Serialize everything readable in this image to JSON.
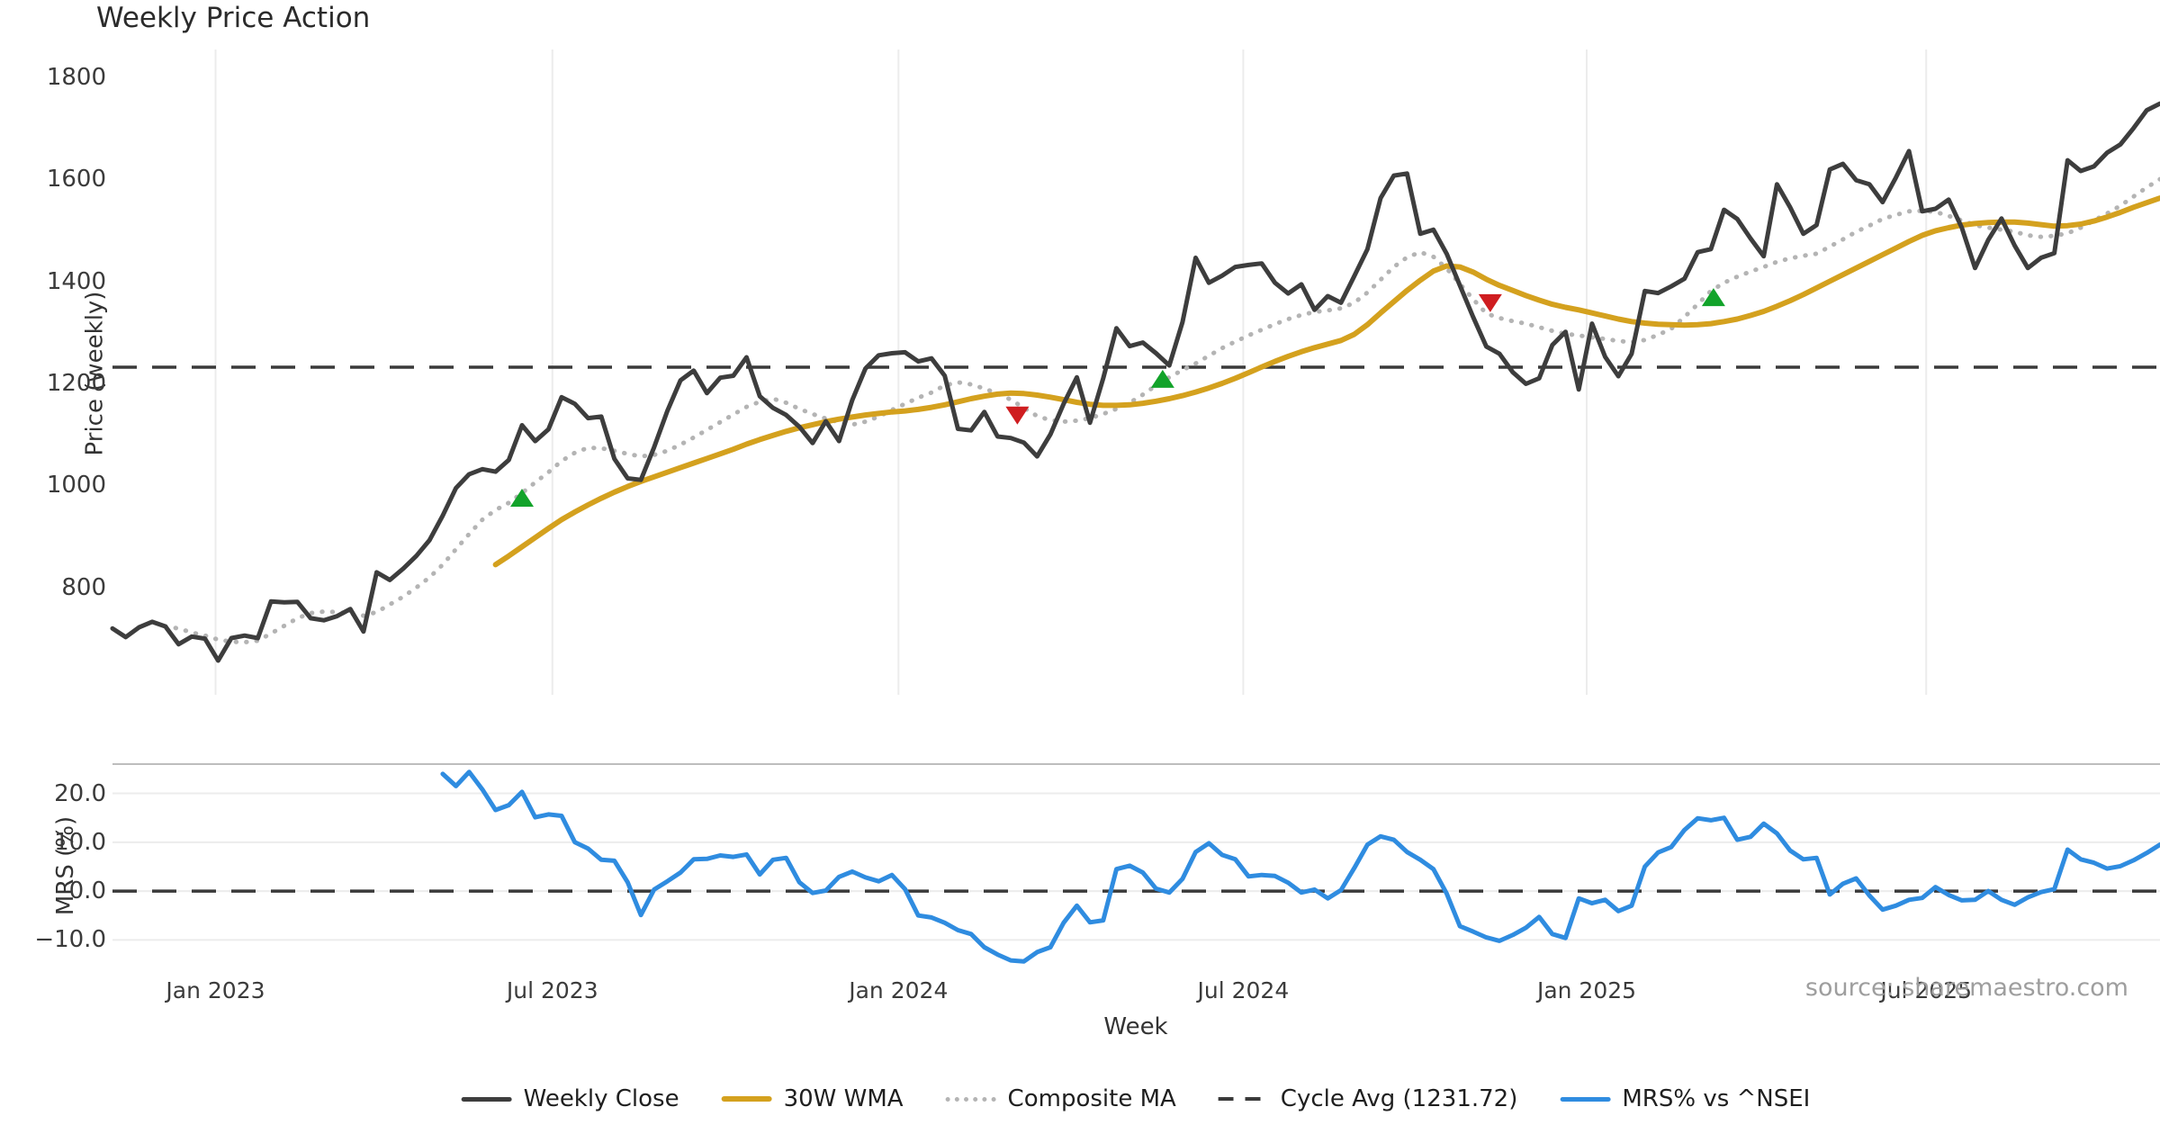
{
  "title": "Weekly Price Action",
  "source_note": "source: sharemaestro.com",
  "legend": {
    "items": [
      {
        "label": "Weekly Close",
        "swatch": "close-line-swatch"
      },
      {
        "label": "30W WMA",
        "swatch": "wma-line-swatch"
      },
      {
        "label": "Composite MA",
        "swatch": "composite-line-swatch"
      },
      {
        "label": "Cycle Avg (1231.72)",
        "swatch": "cycle-avg-swatch"
      },
      {
        "label": "MRS% vs ^NSEI",
        "swatch": "mrs-line-swatch"
      }
    ]
  },
  "colors": {
    "close": "#3d3d3d",
    "wma": "#d4a11e",
    "composite": "#b4b4b4",
    "cycle_avg": "#3a3a3a",
    "mrs": "#2f8ce0",
    "buy_marker": "#12a32a",
    "sell_marker": "#cf1d20",
    "grid": "#ececec",
    "panel_border": "#bdbdbd"
  },
  "chart_data": {
    "type": "line",
    "title": "Weekly Price Action",
    "xlabel": "Week",
    "x_is_weekly_index": true,
    "n_weeks": 156,
    "x_ticks": [
      {
        "label": "Jan 2023",
        "week": 7.8
      },
      {
        "label": "Jul 2023",
        "week": 33.3
      },
      {
        "label": "Jan 2024",
        "week": 59.5
      },
      {
        "label": "Jul 2024",
        "week": 85.6
      },
      {
        "label": "Jan 2025",
        "week": 111.6
      },
      {
        "label": "Jul 2025",
        "week": 137.3
      }
    ],
    "panels": [
      {
        "name": "price",
        "ylabel": "Price (weekly)",
        "ylim": [
          590,
          1854
        ],
        "grid": "vertical",
        "yticks": [
          {
            "label": "1800",
            "value": 1800
          },
          {
            "label": "1600",
            "value": 1600
          },
          {
            "label": "1400",
            "value": 1400
          },
          {
            "label": "1200",
            "value": 1200
          },
          {
            "label": "1000",
            "value": 1000
          },
          {
            "label": "800",
            "value": 800
          }
        ],
        "cycle_avg": 1231.72,
        "series": [
          {
            "name": "Composite MA",
            "style": "dotted",
            "color_key": "composite",
            "start_week": 4,
            "values": [
              724,
              720,
              712,
              706,
              698,
              694,
              693,
              696,
              710,
              725,
              740,
              750,
              753,
              752,
              749,
              745,
              752,
              767,
              782,
              800,
              820,
              845,
              875,
              905,
              933,
              952,
              966,
              985,
              1006,
              1026,
              1048,
              1064,
              1074,
              1073,
              1068,
              1062,
              1057,
              1060,
              1068,
              1080,
              1094,
              1109,
              1124,
              1139,
              1154,
              1164,
              1170,
              1162,
              1150,
              1140,
              1131,
              1124,
              1119,
              1125,
              1135,
              1148,
              1160,
              1172,
              1182,
              1196,
              1202,
              1198,
              1190,
              1180,
              1168,
              1152,
              1136,
              1128,
              1125,
              1127,
              1132,
              1140,
              1150,
              1162,
              1178,
              1196,
              1212,
              1226,
              1239,
              1254,
              1269,
              1282,
              1294,
              1305,
              1316,
              1326,
              1334,
              1340,
              1343,
              1347,
              1358,
              1378,
              1403,
              1428,
              1447,
              1457,
              1448,
              1425,
              1395,
              1365,
              1337,
              1328,
              1322,
              1317,
              1310,
              1303,
              1297,
              1294,
              1290,
              1287,
              1283,
              1281,
              1285,
              1295,
              1307,
              1330,
              1355,
              1381,
              1397,
              1409,
              1419,
              1428,
              1438,
              1445,
              1450,
              1454,
              1468,
              1482,
              1497,
              1509,
              1522,
              1530,
              1537,
              1538,
              1536,
              1528,
              1519,
              1510,
              1505,
              1501,
              1497,
              1490,
              1487,
              1489,
              1494,
              1505,
              1519,
              1533,
              1548,
              1566,
              1584,
              1600
            ]
          },
          {
            "name": "30W WMA",
            "style": "solid",
            "color_key": "wma",
            "width": 6,
            "start_week": 29,
            "values": [
              845,
              862,
              880,
              898,
              916,
              933,
              948,
              962,
              975,
              987,
              998,
              1008,
              1017,
              1026,
              1035,
              1044,
              1053,
              1062,
              1071,
              1081,
              1090,
              1098,
              1106,
              1113,
              1119,
              1125,
              1130,
              1134,
              1138,
              1141,
              1144,
              1146,
              1149,
              1153,
              1158,
              1164,
              1170,
              1175,
              1179,
              1181,
              1180,
              1177,
              1173,
              1168,
              1163,
              1159,
              1157,
              1157,
              1158,
              1161,
              1165,
              1170,
              1176,
              1183,
              1191,
              1200,
              1210,
              1221,
              1232,
              1243,
              1253,
              1262,
              1270,
              1277,
              1284,
              1296,
              1315,
              1338,
              1360,
              1382,
              1402,
              1420,
              1430,
              1428,
              1418,
              1404,
              1392,
              1382,
              1372,
              1363,
              1355,
              1349,
              1344,
              1338,
              1332,
              1326,
              1321,
              1318,
              1316,
              1315,
              1314,
              1315,
              1317,
              1321,
              1326,
              1333,
              1341,
              1351,
              1362,
              1374,
              1387,
              1400,
              1413,
              1426,
              1439,
              1452,
              1465,
              1478,
              1490,
              1499,
              1505,
              1510,
              1513,
              1515,
              1516,
              1516,
              1514,
              1511,
              1508,
              1509,
              1512,
              1518,
              1526,
              1535,
              1545,
              1554,
              1563
            ]
          },
          {
            "name": "Weekly Close",
            "style": "solid",
            "color_key": "close",
            "width": 5,
            "start_week": 0,
            "values": [
              720,
              703,
              722,
              733,
              724,
              689,
              704,
              700,
              657,
              701,
              706,
              701,
              773,
              771,
              772,
              740,
              736,
              744,
              758,
              714,
              830,
              815,
              837,
              862,
              893,
              941,
              995,
              1022,
              1032,
              1027,
              1050,
              1118,
              1087,
              1110,
              1173,
              1160,
              1132,
              1135,
              1052,
              1014,
              1011,
              1075,
              1146,
              1206,
              1225,
              1181,
              1211,
              1215,
              1251,
              1175,
              1152,
              1138,
              1115,
              1083,
              1126,
              1087,
              1167,
              1229,
              1255,
              1259,
              1261,
              1243,
              1249,
              1215,
              1111,
              1108,
              1144,
              1096,
              1093,
              1084,
              1057,
              1100,
              1160,
              1212,
              1123,
              1210,
              1308,
              1273,
              1280,
              1259,
              1235,
              1320,
              1446,
              1397,
              1411,
              1428,
              1432,
              1435,
              1397,
              1376,
              1394,
              1344,
              1371,
              1358,
              1410,
              1463,
              1563,
              1607,
              1611,
              1493,
              1501,
              1454,
              1392,
              1330,
              1272,
              1258,
              1222,
              1199,
              1210,
              1275,
              1301,
              1188,
              1317,
              1252,
              1214,
              1258,
              1381,
              1377,
              1390,
              1405,
              1457,
              1463,
              1540,
              1522,
              1484,
              1449,
              1590,
              1545,
              1493,
              1510,
              1619,
              1630,
              1598,
              1590,
              1555,
              1603,
              1655,
              1537,
              1542,
              1560,
              1505,
              1426,
              1481,
              1523,
              1470,
              1426,
              1446,
              1455,
              1637,
              1616,
              1625,
              1652,
              1668,
              1700,
              1735,
              1748
            ]
          }
        ],
        "markers": {
          "buy": {
            "shape": "triangle-up",
            "color_key": "buy_marker",
            "points": [
              {
                "week": 31.0,
                "price": 976
              },
              {
                "week": 79.5,
                "price": 1209
              },
              {
                "week": 121.2,
                "price": 1369
              }
            ]
          },
          "sell": {
            "shape": "triangle-down",
            "color_key": "sell_marker",
            "points": [
              {
                "week": 68.5,
                "price": 1137
              },
              {
                "week": 104.3,
                "price": 1357
              }
            ]
          }
        }
      },
      {
        "name": "mrs",
        "ylabel": "MRS (%)",
        "ylim": [
          -15.1,
          26
        ],
        "grid": "horizontal",
        "zero_dash_line": 0,
        "yticks": [
          {
            "label": "20.0",
            "value": 20
          },
          {
            "label": "10.0",
            "value": 10
          },
          {
            "label": "0.0",
            "value": 0
          },
          {
            "label": "−10.0",
            "value": -10
          }
        ],
        "series": [
          {
            "name": "MRS% vs ^NSEI",
            "style": "solid",
            "color_key": "mrs",
            "width": 5,
            "start_week": 25,
            "values": [
              24.0,
              21.5,
              24.4,
              20.8,
              16.6,
              17.6,
              20.3,
              15.1,
              15.7,
              15.4,
              10.0,
              8.7,
              6.4,
              6.2,
              1.8,
              -4.9,
              0.3,
              2.0,
              3.8,
              6.5,
              6.6,
              7.3,
              7.0,
              7.5,
              3.4,
              6.4,
              6.8,
              1.8,
              -0.4,
              0.1,
              2.9,
              4.0,
              2.8,
              2.0,
              3.3,
              0.4,
              -5.0,
              -5.4,
              -6.5,
              -8.0,
              -8.8,
              -11.5,
              -13.0,
              -14.2,
              -14.4,
              -12.5,
              -11.5,
              -6.5,
              -3.0,
              -6.4,
              -6.0,
              4.5,
              5.2,
              3.8,
              0.5,
              -0.3,
              2.5,
              8.0,
              9.8,
              7.4,
              6.5,
              3.0,
              3.3,
              3.1,
              1.7,
              -0.3,
              0.3,
              -1.5,
              0.2,
              4.7,
              9.5,
              11.2,
              10.5,
              8.0,
              6.4,
              4.5,
              -0.5,
              -7.2,
              -8.3,
              -9.5,
              -10.2,
              -9.0,
              -7.5,
              -5.3,
              -8.8,
              -9.6,
              -1.5,
              -2.5,
              -1.8,
              -4.1,
              -3.0,
              5.0,
              7.9,
              9.0,
              12.5,
              14.9,
              14.5,
              15.0,
              10.5,
              11.1,
              13.8,
              11.8,
              8.3,
              6.5,
              6.8,
              -0.7,
              1.5,
              2.6,
              -0.9,
              -3.8,
              -3.0,
              -1.8,
              -1.4,
              0.8,
              -0.8,
              -1.9,
              -1.8,
              0.0,
              -1.8,
              -2.8,
              -1.3,
              -0.2,
              0.4,
              8.5,
              6.5,
              5.8,
              4.6,
              5.1,
              6.3,
              7.8,
              9.5
            ]
          }
        ]
      }
    ]
  }
}
